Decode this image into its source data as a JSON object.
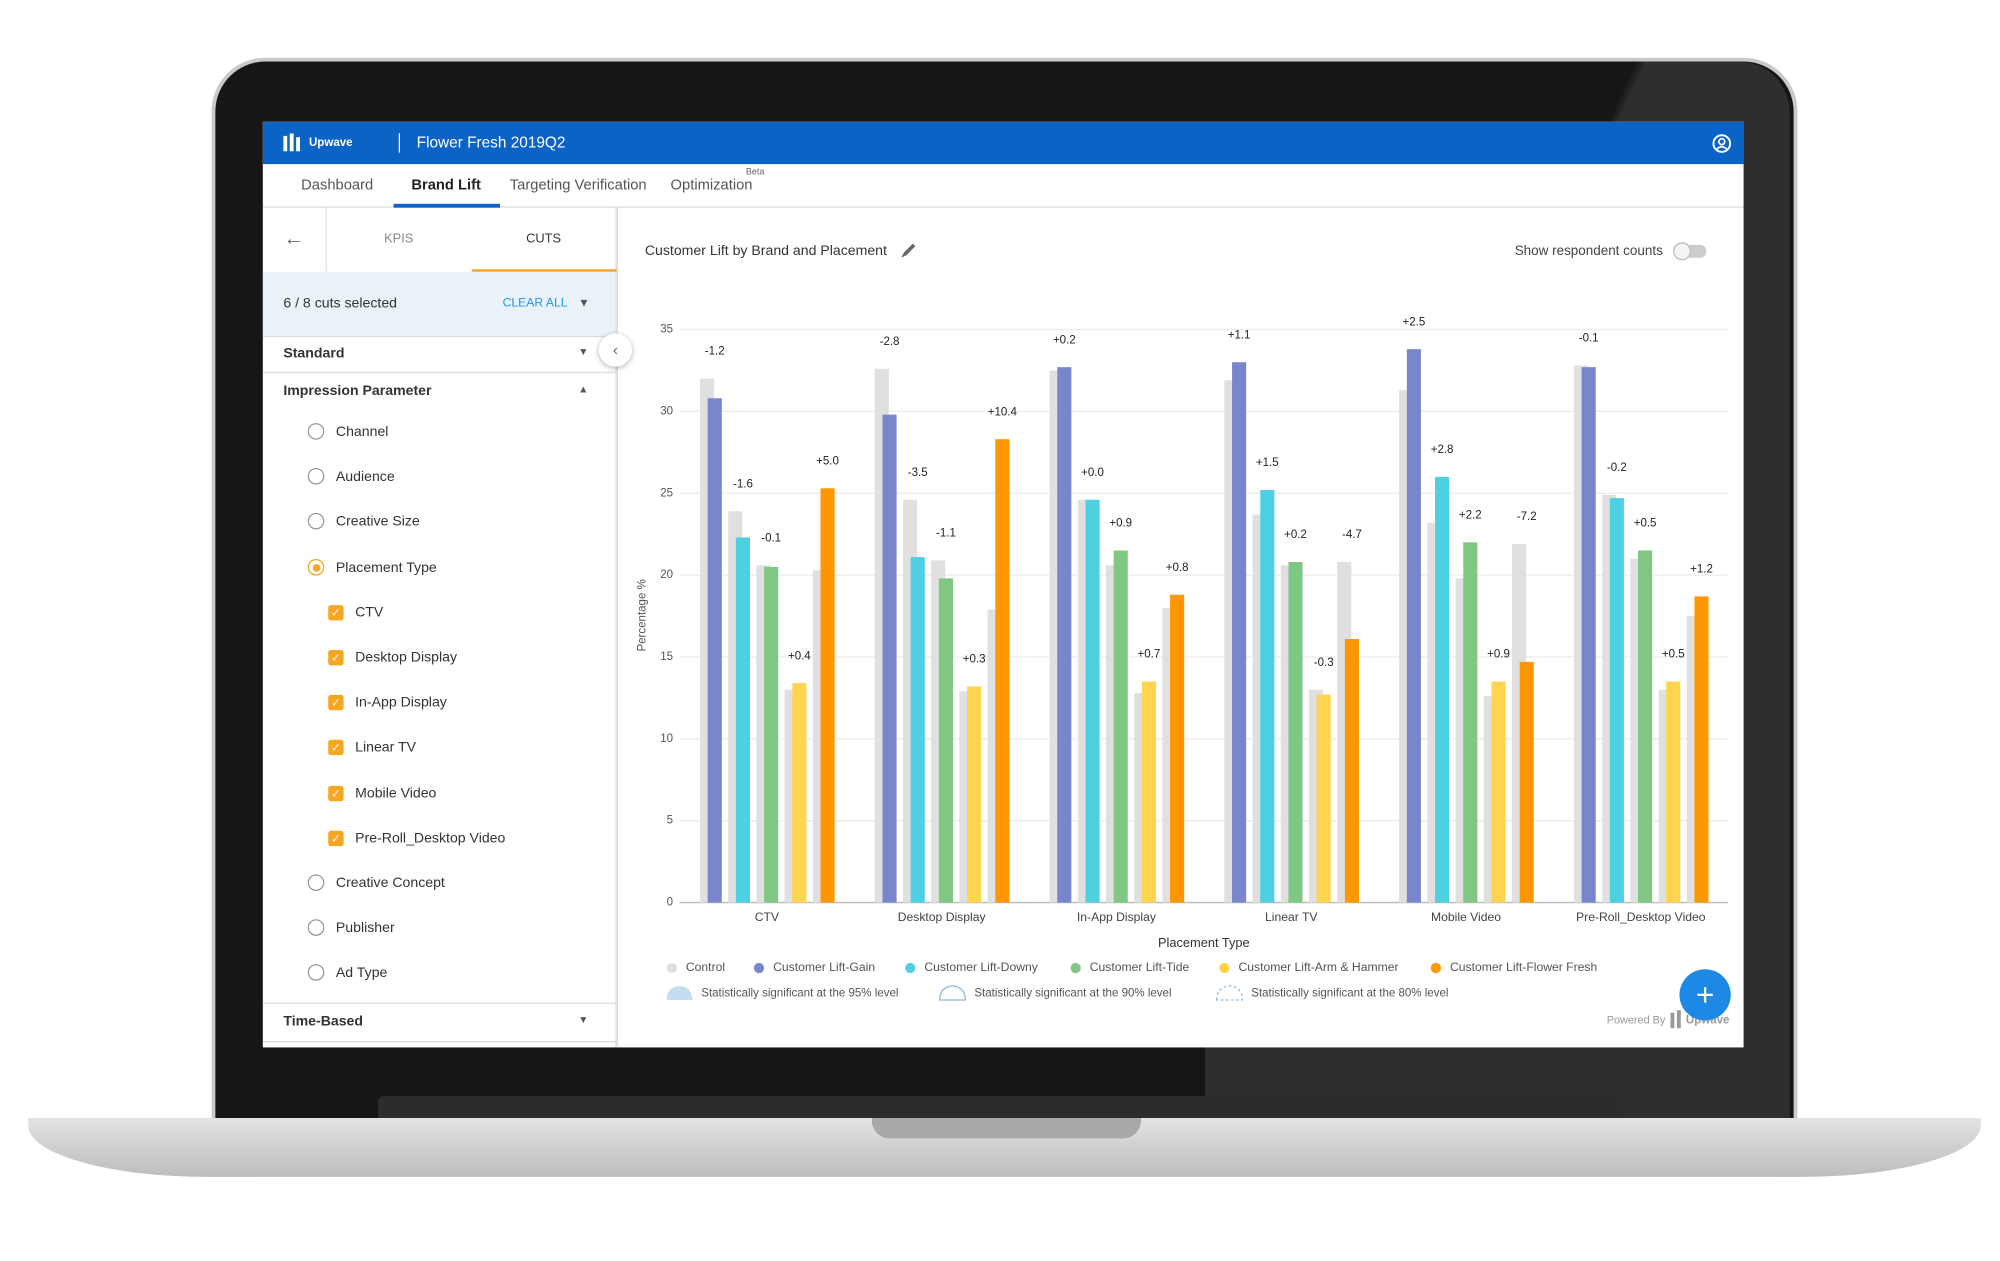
{
  "header": {
    "brand": "Upwave",
    "campaign": "Flower Fresh 2019Q2"
  },
  "tabs": [
    {
      "label": "Dashboard"
    },
    {
      "label": "Brand Lift",
      "active": true
    },
    {
      "label": "Targeting Verification"
    },
    {
      "label": "Optimization",
      "badge": "Beta"
    }
  ],
  "sidebar": {
    "tabs": [
      "KPIS",
      "CUTS"
    ],
    "summary": "6 / 8 cuts selected",
    "clear_all": "CLEAR ALL",
    "groups": [
      {
        "label": "Standard"
      },
      {
        "label": "Impression Parameter",
        "options": [
          {
            "label": "Channel"
          },
          {
            "label": "Audience"
          },
          {
            "label": "Creative Size"
          },
          {
            "label": "Placement Type",
            "selected": true,
            "items": [
              "CTV",
              "Desktop Display",
              "In-App Display",
              "Linear TV",
              "Mobile Video",
              "Pre-Roll_Desktop Video"
            ]
          },
          {
            "label": "Creative Concept"
          },
          {
            "label": "Publisher"
          },
          {
            "label": "Ad Type"
          }
        ]
      },
      {
        "label": "Time-Based"
      }
    ]
  },
  "panel": {
    "title": "Customer Lift by Brand and Placement",
    "toggle": "Show respondent counts",
    "powered_by": "Powered By",
    "powered_brand": "Upwave"
  },
  "chart_data": {
    "type": "bar",
    "categories": [
      "CTV",
      "Desktop Display",
      "In-App Display",
      "Linear TV",
      "Mobile Video",
      "Pre-Roll_Desktop Video"
    ],
    "xlabel": "Placement Type",
    "ylabel": "Percentage %",
    "ylim": [
      0,
      35
    ],
    "yticks": [
      0,
      5,
      10,
      15,
      20,
      25,
      30,
      35
    ],
    "grid": true,
    "control": {
      "name": "Control",
      "color": "#e0e0e0"
    },
    "series": [
      {
        "name": "Customer Lift-Gain",
        "color": "#7986cb",
        "values": [
          30.8,
          29.8,
          32.7,
          33.0,
          33.8,
          32.7
        ],
        "control_values": [
          32.0,
          32.6,
          32.5,
          31.9,
          31.3,
          32.8
        ],
        "lift_labels": [
          "-1.2",
          "-2.8",
          "+0.2",
          "+1.1",
          "+2.5",
          "-0.1"
        ]
      },
      {
        "name": "Customer Lift-Downy",
        "color": "#4dd0e1",
        "values": [
          22.3,
          21.1,
          24.6,
          25.2,
          26.0,
          24.7
        ],
        "control_values": [
          23.9,
          24.6,
          24.6,
          23.7,
          23.2,
          24.9
        ],
        "lift_labels": [
          "-1.6",
          "-3.5",
          "+0.0",
          "+1.5",
          "+2.8",
          "-0.2"
        ]
      },
      {
        "name": "Customer Lift-Tide",
        "color": "#81c784",
        "values": [
          20.5,
          19.8,
          21.5,
          20.8,
          22.0,
          21.5
        ],
        "control_values": [
          20.6,
          20.9,
          20.6,
          20.6,
          19.8,
          21.0
        ],
        "lift_labels": [
          "-0.1",
          "-1.1",
          "+0.9",
          "+0.2",
          "+2.2",
          "+0.5"
        ]
      },
      {
        "name": "Customer Lift-Arm & Hammer",
        "color": "#ffd54f",
        "values": [
          13.4,
          13.2,
          13.5,
          12.7,
          13.5,
          13.5
        ],
        "control_values": [
          13.0,
          12.9,
          12.8,
          13.0,
          12.6,
          13.0
        ],
        "lift_labels": [
          "+0.4",
          "+0.3",
          "+0.7",
          "-0.3",
          "+0.9",
          "+0.5"
        ]
      },
      {
        "name": "Customer Lift-Flower Fresh",
        "color": "#ff9800",
        "values": [
          25.3,
          28.3,
          18.8,
          16.1,
          14.7,
          18.7
        ],
        "control_values": [
          20.3,
          17.9,
          18.0,
          20.8,
          21.9,
          17.5
        ],
        "lift_labels": [
          "+5.0",
          "+10.4",
          "+0.8",
          "-4.7",
          "-7.2",
          "+1.2"
        ]
      }
    ],
    "significance_legend": [
      "Statistically significant at the 95% level",
      "Statistically significant at the 90% level",
      "Statistically significant at the 80% level"
    ]
  }
}
